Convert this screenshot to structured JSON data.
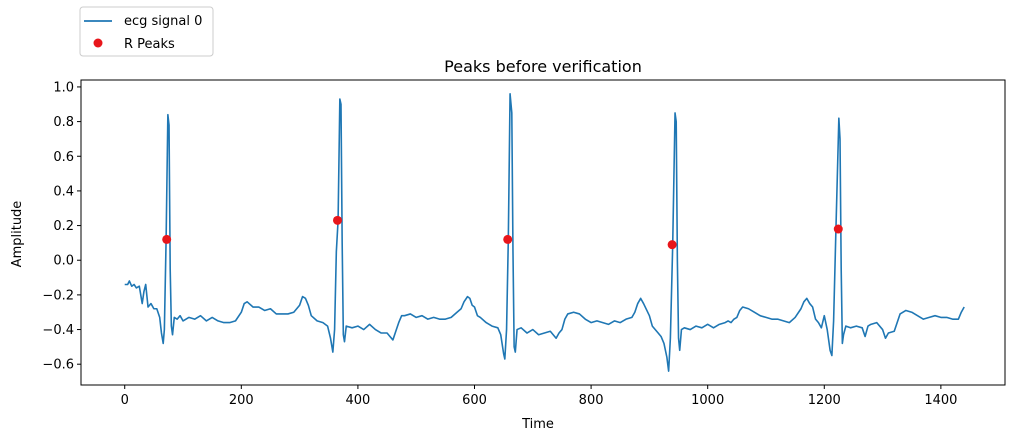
{
  "chart_data": {
    "type": "line",
    "title": "Peaks before verification",
    "xlabel": "Time",
    "ylabel": "Amplitude",
    "xlim": [
      -75,
      1510
    ],
    "ylim": [
      -0.72,
      1.04
    ],
    "xticks": [
      0,
      200,
      400,
      600,
      800,
      1000,
      1200,
      1400
    ],
    "yticks": [
      -0.6,
      -0.4,
      -0.2,
      0.0,
      0.2,
      0.4,
      0.6,
      0.8,
      1.0
    ],
    "ytick_labels": [
      "−0.6",
      "−0.4",
      "−0.2",
      "0.0",
      "0.2",
      "0.4",
      "0.6",
      "0.8",
      "1.0"
    ],
    "grid": false,
    "legend": {
      "placement": "top-left, outside above axes"
    },
    "series": [
      {
        "name": "ecg signal 0",
        "kind": "line",
        "color": "#1f77b4",
        "points": [
          [
            0,
            -0.14
          ],
          [
            5,
            -0.14
          ],
          [
            8,
            -0.12
          ],
          [
            12,
            -0.15
          ],
          [
            16,
            -0.14
          ],
          [
            20,
            -0.16
          ],
          [
            25,
            -0.15
          ],
          [
            30,
            -0.25
          ],
          [
            33,
            -0.18
          ],
          [
            36,
            -0.14
          ],
          [
            40,
            -0.27
          ],
          [
            45,
            -0.25
          ],
          [
            50,
            -0.28
          ],
          [
            55,
            -0.28
          ],
          [
            60,
            -0.33
          ],
          [
            63,
            -0.42
          ],
          [
            66,
            -0.48
          ],
          [
            68,
            -0.4
          ],
          [
            71,
            0.12
          ],
          [
            74,
            0.84
          ],
          [
            76,
            0.78
          ],
          [
            78,
            -0.05
          ],
          [
            80,
            -0.38
          ],
          [
            82,
            -0.43
          ],
          [
            85,
            -0.33
          ],
          [
            90,
            -0.34
          ],
          [
            95,
            -0.32
          ],
          [
            100,
            -0.35
          ],
          [
            110,
            -0.33
          ],
          [
            120,
            -0.34
          ],
          [
            130,
            -0.32
          ],
          [
            140,
            -0.35
          ],
          [
            150,
            -0.33
          ],
          [
            160,
            -0.35
          ],
          [
            170,
            -0.36
          ],
          [
            180,
            -0.36
          ],
          [
            190,
            -0.35
          ],
          [
            200,
            -0.3
          ],
          [
            205,
            -0.25
          ],
          [
            210,
            -0.24
          ],
          [
            220,
            -0.27
          ],
          [
            230,
            -0.27
          ],
          [
            240,
            -0.29
          ],
          [
            250,
            -0.28
          ],
          [
            260,
            -0.31
          ],
          [
            270,
            -0.31
          ],
          [
            280,
            -0.31
          ],
          [
            290,
            -0.3
          ],
          [
            300,
            -0.26
          ],
          [
            305,
            -0.21
          ],
          [
            310,
            -0.22
          ],
          [
            315,
            -0.26
          ],
          [
            320,
            -0.32
          ],
          [
            330,
            -0.35
          ],
          [
            340,
            -0.36
          ],
          [
            348,
            -0.38
          ],
          [
            353,
            -0.45
          ],
          [
            357,
            -0.53
          ],
          [
            360,
            -0.4
          ],
          [
            363,
            0.05
          ],
          [
            366,
            0.23
          ],
          [
            369,
            0.93
          ],
          [
            371,
            0.9
          ],
          [
            373,
            0.1
          ],
          [
            375,
            -0.43
          ],
          [
            377,
            -0.47
          ],
          [
            380,
            -0.38
          ],
          [
            390,
            -0.39
          ],
          [
            400,
            -0.38
          ],
          [
            410,
            -0.4
          ],
          [
            420,
            -0.37
          ],
          [
            430,
            -0.4
          ],
          [
            440,
            -0.42
          ],
          [
            450,
            -0.42
          ],
          [
            455,
            -0.44
          ],
          [
            460,
            -0.46
          ],
          [
            465,
            -0.41
          ],
          [
            470,
            -0.36
          ],
          [
            475,
            -0.32
          ],
          [
            480,
            -0.32
          ],
          [
            490,
            -0.31
          ],
          [
            500,
            -0.33
          ],
          [
            510,
            -0.32
          ],
          [
            520,
            -0.34
          ],
          [
            530,
            -0.33
          ],
          [
            540,
            -0.34
          ],
          [
            550,
            -0.34
          ],
          [
            560,
            -0.33
          ],
          [
            570,
            -0.3
          ],
          [
            577,
            -0.28
          ],
          [
            582,
            -0.24
          ],
          [
            588,
            -0.21
          ],
          [
            592,
            -0.22
          ],
          [
            596,
            -0.26
          ],
          [
            600,
            -0.27
          ],
          [
            605,
            -0.32
          ],
          [
            610,
            -0.33
          ],
          [
            620,
            -0.36
          ],
          [
            630,
            -0.38
          ],
          [
            640,
            -0.39
          ],
          [
            645,
            -0.43
          ],
          [
            650,
            -0.54
          ],
          [
            652,
            -0.57
          ],
          [
            655,
            -0.4
          ],
          [
            658,
            0.12
          ],
          [
            661,
            0.96
          ],
          [
            664,
            0.85
          ],
          [
            666,
            0.05
          ],
          [
            668,
            -0.5
          ],
          [
            670,
            -0.53
          ],
          [
            673,
            -0.4
          ],
          [
            680,
            -0.39
          ],
          [
            690,
            -0.42
          ],
          [
            700,
            -0.4
          ],
          [
            710,
            -0.43
          ],
          [
            720,
            -0.42
          ],
          [
            730,
            -0.41
          ],
          [
            740,
            -0.45
          ],
          [
            745,
            -0.42
          ],
          [
            750,
            -0.4
          ],
          [
            755,
            -0.34
          ],
          [
            760,
            -0.31
          ],
          [
            770,
            -0.3
          ],
          [
            780,
            -0.31
          ],
          [
            790,
            -0.34
          ],
          [
            800,
            -0.36
          ],
          [
            810,
            -0.35
          ],
          [
            820,
            -0.36
          ],
          [
            830,
            -0.37
          ],
          [
            840,
            -0.35
          ],
          [
            850,
            -0.36
          ],
          [
            860,
            -0.34
          ],
          [
            870,
            -0.33
          ],
          [
            875,
            -0.3
          ],
          [
            880,
            -0.25
          ],
          [
            885,
            -0.22
          ],
          [
            890,
            -0.25
          ],
          [
            900,
            -0.32
          ],
          [
            905,
            -0.38
          ],
          [
            915,
            -0.42
          ],
          [
            920,
            -0.44
          ],
          [
            925,
            -0.48
          ],
          [
            930,
            -0.56
          ],
          [
            933,
            -0.64
          ],
          [
            936,
            -0.45
          ],
          [
            940,
            0.09
          ],
          [
            944,
            0.85
          ],
          [
            946,
            0.8
          ],
          [
            948,
            0.0
          ],
          [
            950,
            -0.45
          ],
          [
            952,
            -0.52
          ],
          [
            955,
            -0.4
          ],
          [
            960,
            -0.39
          ],
          [
            970,
            -0.4
          ],
          [
            980,
            -0.38
          ],
          [
            990,
            -0.39
          ],
          [
            1000,
            -0.37
          ],
          [
            1010,
            -0.39
          ],
          [
            1020,
            -0.37
          ],
          [
            1030,
            -0.36
          ],
          [
            1035,
            -0.35
          ],
          [
            1040,
            -0.36
          ],
          [
            1045,
            -0.34
          ],
          [
            1050,
            -0.33
          ],
          [
            1055,
            -0.29
          ],
          [
            1060,
            -0.27
          ],
          [
            1070,
            -0.28
          ],
          [
            1080,
            -0.3
          ],
          [
            1090,
            -0.32
          ],
          [
            1100,
            -0.33
          ],
          [
            1110,
            -0.34
          ],
          [
            1120,
            -0.34
          ],
          [
            1130,
            -0.35
          ],
          [
            1140,
            -0.36
          ],
          [
            1150,
            -0.33
          ],
          [
            1160,
            -0.28
          ],
          [
            1165,
            -0.24
          ],
          [
            1170,
            -0.22
          ],
          [
            1175,
            -0.25
          ],
          [
            1180,
            -0.27
          ],
          [
            1185,
            -0.34
          ],
          [
            1190,
            -0.36
          ],
          [
            1195,
            -0.39
          ],
          [
            1200,
            -0.32
          ],
          [
            1205,
            -0.4
          ],
          [
            1210,
            -0.52
          ],
          [
            1213,
            -0.55
          ],
          [
            1216,
            -0.35
          ],
          [
            1220,
            0.18
          ],
          [
            1225,
            0.82
          ],
          [
            1227,
            0.7
          ],
          [
            1229,
            -0.05
          ],
          [
            1231,
            -0.48
          ],
          [
            1233,
            -0.43
          ],
          [
            1237,
            -0.38
          ],
          [
            1245,
            -0.39
          ],
          [
            1255,
            -0.38
          ],
          [
            1265,
            -0.39
          ],
          [
            1270,
            -0.44
          ],
          [
            1275,
            -0.38
          ],
          [
            1280,
            -0.37
          ],
          [
            1290,
            -0.36
          ],
          [
            1300,
            -0.4
          ],
          [
            1305,
            -0.45
          ],
          [
            1310,
            -0.42
          ],
          [
            1320,
            -0.41
          ],
          [
            1325,
            -0.36
          ],
          [
            1330,
            -0.31
          ],
          [
            1340,
            -0.29
          ],
          [
            1350,
            -0.3
          ],
          [
            1360,
            -0.32
          ],
          [
            1370,
            -0.34
          ],
          [
            1380,
            -0.33
          ],
          [
            1390,
            -0.32
          ],
          [
            1400,
            -0.33
          ],
          [
            1410,
            -0.33
          ],
          [
            1420,
            -0.34
          ],
          [
            1430,
            -0.34
          ],
          [
            1435,
            -0.3
          ],
          [
            1440,
            -0.27
          ]
        ]
      },
      {
        "name": "R Peaks",
        "kind": "scatter",
        "color": "#e8161b",
        "points": [
          [
            72,
            0.12
          ],
          [
            365,
            0.23
          ],
          [
            657,
            0.12
          ],
          [
            939,
            0.09
          ],
          [
            1224,
            0.18
          ]
        ]
      }
    ]
  }
}
